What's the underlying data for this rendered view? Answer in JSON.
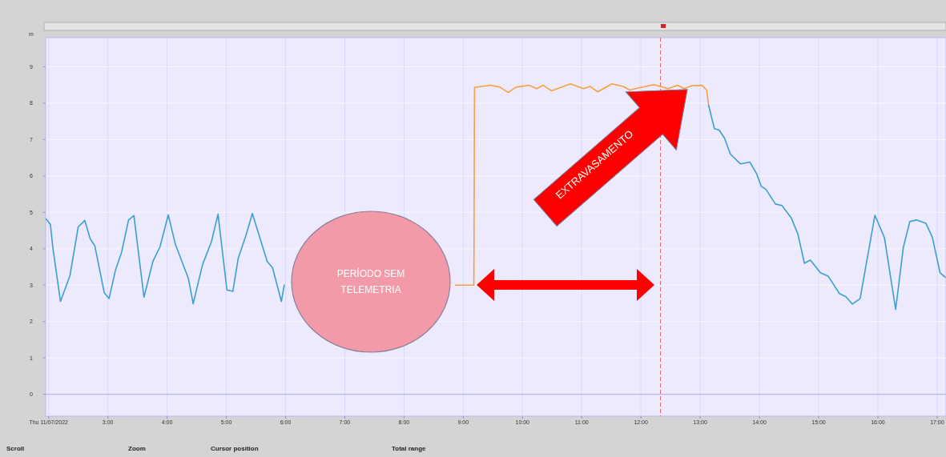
{
  "chart_data": {
    "type": "line",
    "ylabel": "m",
    "xlim": [
      1.95,
      17.15
    ],
    "ylim": [
      -0.6,
      9.8
    ],
    "xticks": [
      {
        "value": 2,
        "label": "Thu 11/07/2022"
      },
      {
        "value": 3,
        "label": "3:00"
      },
      {
        "value": 4,
        "label": "4:00"
      },
      {
        "value": 5,
        "label": "5:00"
      },
      {
        "value": 6,
        "label": "6:00"
      },
      {
        "value": 7,
        "label": "7:00"
      },
      {
        "value": 8,
        "label": "8:00"
      },
      {
        "value": 9,
        "label": "9:00"
      },
      {
        "value": 10,
        "label": "10:00"
      },
      {
        "value": 11,
        "label": "11:00"
      },
      {
        "value": 12,
        "label": "12:00"
      },
      {
        "value": 13,
        "label": "13:00"
      },
      {
        "value": 14,
        "label": "14:00"
      },
      {
        "value": 15,
        "label": "15:00"
      },
      {
        "value": 16,
        "label": "16:00"
      },
      {
        "value": 17,
        "label": "17:00"
      }
    ],
    "yticks": [
      0,
      1,
      2,
      3,
      4,
      5,
      6,
      7,
      8,
      9
    ],
    "grid": true,
    "marker": "none",
    "line_style": "solid",
    "series": [
      {
        "color": "#3a9fd0",
        "x": [
          1.95,
          2.03,
          2.07,
          2.2,
          2.36,
          2.5,
          2.61,
          2.7,
          2.78,
          2.94,
          3.02,
          3.13,
          3.23,
          3.35,
          3.44,
          3.61,
          3.76,
          3.88,
          4.02,
          4.14,
          4.36,
          4.44,
          4.6,
          4.75,
          4.86,
          5.01,
          5.11,
          5.2,
          5.33,
          5.44,
          5.69,
          5.78,
          5.93,
          5.98
        ],
        "values": [
          4.83,
          4.67,
          4.05,
          2.55,
          3.26,
          4.6,
          4.78,
          4.28,
          4.08,
          2.79,
          2.63,
          3.42,
          3.89,
          4.79,
          4.91,
          2.67,
          3.65,
          4.05,
          4.93,
          4.12,
          3.18,
          2.49,
          3.57,
          4.2,
          4.95,
          2.87,
          2.83,
          3.73,
          4.36,
          4.97,
          3.65,
          3.48,
          2.55,
          3.02
        ]
      },
      {
        "color": "#f5a040",
        "x": [
          8.86,
          9.18,
          9.19,
          9.46,
          9.62,
          9.76,
          9.89,
          10.11,
          10.24,
          10.35,
          10.49,
          10.81,
          11.03,
          11.14,
          11.27,
          11.51,
          11.7,
          11.81,
          12.0,
          12.22,
          12.46,
          12.62,
          12.73,
          12.86,
          13.03,
          13.11,
          13.14
        ],
        "values": [
          3.0,
          3.0,
          8.43,
          8.49,
          8.44,
          8.29,
          8.44,
          8.49,
          8.4,
          8.49,
          8.34,
          8.53,
          8.4,
          8.46,
          8.31,
          8.53,
          8.46,
          8.36,
          8.43,
          8.51,
          8.4,
          8.49,
          8.4,
          8.48,
          8.49,
          8.36,
          7.96
        ]
      },
      {
        "color": "#3a9fd0",
        "x": [
          13.14,
          13.24,
          13.32,
          13.41,
          13.51,
          13.68,
          13.84,
          13.95,
          14.03,
          14.11,
          14.27,
          14.38,
          14.54,
          14.65,
          14.76,
          14.86,
          15.03,
          15.16,
          15.35,
          15.46,
          15.57,
          15.7,
          15.95,
          16.11,
          16.3,
          16.43,
          16.54,
          16.65,
          16.81,
          16.92,
          17.05,
          17.14
        ],
        "values": [
          7.96,
          7.3,
          7.26,
          7.04,
          6.6,
          6.33,
          6.38,
          6.07,
          5.72,
          5.63,
          5.23,
          5.19,
          4.84,
          4.4,
          3.6,
          3.69,
          3.34,
          3.25,
          2.77,
          2.68,
          2.48,
          2.63,
          4.92,
          4.31,
          2.33,
          4.04,
          4.75,
          4.79,
          4.7,
          4.31,
          3.34,
          3.21
        ]
      }
    ],
    "ref_lines": [
      {
        "axis": "x",
        "value": 12.33,
        "color": "#e06060",
        "line_style": "dashed"
      },
      {
        "axis": "y",
        "value": 0,
        "color": "#a8a8ee",
        "line_style": "solid"
      }
    ],
    "annotations": [
      "PERÍODO SEM TELEMETRIA",
      "EXTRAVASAMENTO",
      "Scroll",
      "Zoom",
      "Cursor position",
      "Total range"
    ]
  }
}
